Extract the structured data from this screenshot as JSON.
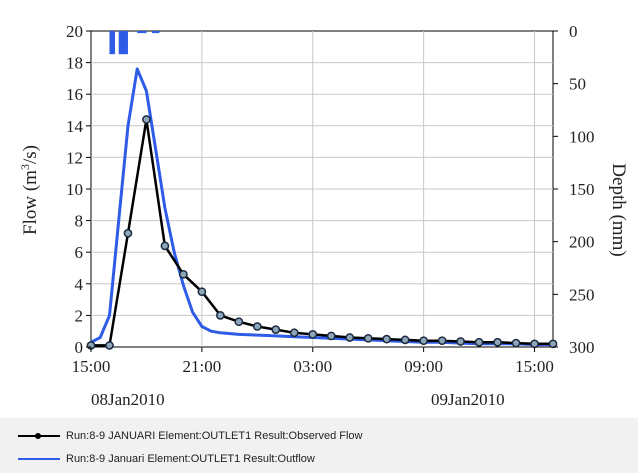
{
  "chart_data": {
    "type": "line",
    "y_left": {
      "label_main": "Flow (m",
      "label_sup": "3",
      "label_end": "/s)",
      "ticks": [
        "0",
        "2",
        "4",
        "6",
        "8",
        "10",
        "12",
        "14",
        "16",
        "18",
        "20"
      ],
      "range": [
        0,
        20
      ]
    },
    "y_right": {
      "label": "Depth (mm)",
      "ticks": [
        "0",
        "50",
        "100",
        "150",
        "200",
        "250",
        "300"
      ],
      "range": [
        0,
        300
      ],
      "inverted": true
    },
    "x": {
      "ticks": [
        "15:00",
        "21:00",
        "03:00",
        "09:00",
        "15:00"
      ],
      "tick_hours": [
        0,
        6,
        12,
        18,
        24
      ],
      "range_hours": [
        0,
        25
      ],
      "date_labels": [
        "08Jan2010",
        "09Jan2010"
      ]
    },
    "grid": true,
    "series": [
      {
        "name": "Run:8-9 JANUARI Element:OUTLET1 Result:Observed Flow",
        "color": "#000000",
        "markers": true,
        "x_hours": [
          0,
          1,
          2,
          3,
          4,
          5,
          6,
          7,
          8,
          9,
          10,
          11,
          12,
          13,
          14,
          15,
          16,
          17,
          18,
          19,
          20,
          21,
          22,
          23,
          24,
          25
        ],
        "values": [
          0.1,
          0.1,
          7.2,
          14.4,
          6.4,
          4.6,
          3.5,
          2.0,
          1.6,
          1.3,
          1.1,
          0.9,
          0.8,
          0.7,
          0.6,
          0.55,
          0.5,
          0.45,
          0.4,
          0.4,
          0.35,
          0.3,
          0.3,
          0.25,
          0.2,
          0.2
        ]
      },
      {
        "name": "Run:8-9 Januari Element:OUTLET1 Result:Outflow",
        "color": "#2e5ce6",
        "markers": false,
        "x_hours": [
          0,
          0.5,
          1,
          1.5,
          2,
          2.5,
          3,
          3.5,
          4,
          4.5,
          5,
          5.5,
          6,
          6.5,
          7,
          8,
          9,
          10,
          11,
          12,
          13,
          14,
          15,
          16,
          17,
          18,
          19,
          20,
          21,
          22,
          23,
          24,
          25
        ],
        "values": [
          0.3,
          0.6,
          2.0,
          8.0,
          14.0,
          17.6,
          16.2,
          12.5,
          8.8,
          6.0,
          3.9,
          2.2,
          1.3,
          1.0,
          0.9,
          0.8,
          0.75,
          0.7,
          0.65,
          0.6,
          0.55,
          0.5,
          0.45,
          0.4,
          0.35,
          0.3,
          0.3,
          0.25,
          0.2,
          0.2,
          0.2,
          0.15,
          0.15
        ]
      }
    ],
    "precipitation": {
      "color": "#2e5ce6",
      "bars": [
        {
          "start_hour": 1.0,
          "end_hour": 1.3,
          "depth_mm": 22
        },
        {
          "start_hour": 1.5,
          "end_hour": 2.0,
          "depth_mm": 22
        },
        {
          "start_hour": 2.5,
          "end_hour": 3.0,
          "depth_mm": 2
        },
        {
          "start_hour": 3.3,
          "end_hour": 3.7,
          "depth_mm": 2
        }
      ]
    }
  }
}
